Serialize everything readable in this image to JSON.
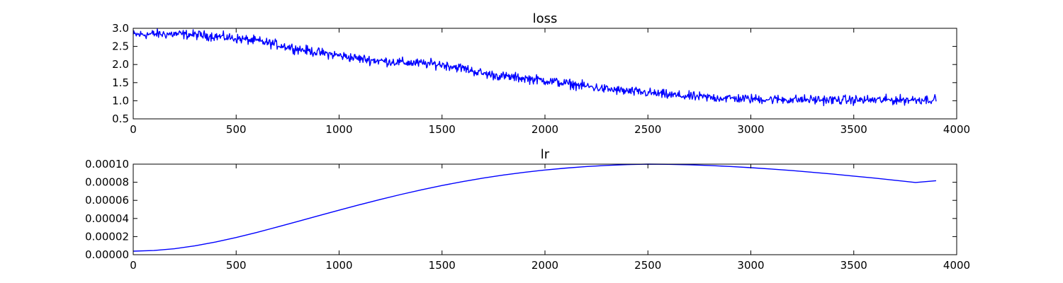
{
  "chart_data": [
    {
      "type": "line",
      "title": "loss",
      "xlabel": "",
      "ylabel": "",
      "xlim": [
        0,
        4000
      ],
      "ylim": [
        0.5,
        3.0
      ],
      "xticks": [
        "0",
        "500",
        "1000",
        "1500",
        "2000",
        "2500",
        "3000",
        "3500",
        "4000"
      ],
      "yticks": [
        "0.5",
        "1.0",
        "1.5",
        "2.0",
        "2.5",
        "3.0"
      ],
      "grid": false,
      "series": [
        {
          "color": "#0000ff",
          "noise_amplitude": 0.08,
          "x": [
            0,
            100,
            200,
            300,
            400,
            500,
            600,
            700,
            800,
            900,
            1000,
            1100,
            1200,
            1300,
            1400,
            1500,
            1600,
            1700,
            1800,
            1900,
            2000,
            2100,
            2200,
            2300,
            2400,
            2500,
            2600,
            2700,
            2800,
            2900,
            3000,
            3100,
            3200,
            3300,
            3400,
            3500,
            3600,
            3700,
            3800,
            3900
          ],
          "y": [
            2.82,
            2.84,
            2.84,
            2.82,
            2.78,
            2.72,
            2.65,
            2.55,
            2.43,
            2.33,
            2.25,
            2.16,
            2.1,
            2.06,
            2.03,
            2.0,
            1.9,
            1.75,
            1.67,
            1.62,
            1.56,
            1.48,
            1.4,
            1.32,
            1.26,
            1.22,
            1.16,
            1.12,
            1.09,
            1.07,
            1.05,
            1.04,
            1.03,
            1.03,
            1.02,
            1.02,
            1.02,
            1.02,
            1.03,
            1.04
          ]
        }
      ]
    },
    {
      "type": "line",
      "title": "lr",
      "xlabel": "",
      "ylabel": "",
      "xlim": [
        0,
        4000
      ],
      "ylim": [
        0.0,
        0.0001
      ],
      "xticks": [
        "0",
        "500",
        "1000",
        "1500",
        "2000",
        "2500",
        "3000",
        "3500",
        "4000"
      ],
      "yticks": [
        "0.00000",
        "0.00002",
        "0.00004",
        "0.00006",
        "0.00008",
        "0.00010"
      ],
      "grid": false,
      "series": [
        {
          "color": "#0000ff",
          "x": [
            0,
            100,
            200,
            300,
            400,
            500,
            600,
            700,
            800,
            900,
            1000,
            1100,
            1200,
            1300,
            1400,
            1500,
            1600,
            1700,
            1800,
            1900,
            2000,
            2100,
            2200,
            2300,
            2400,
            2500,
            2600,
            2700,
            2800,
            2900,
            3000,
            3100,
            3200,
            3300,
            3400,
            3500,
            3600,
            3700,
            3800,
            3900
          ],
          "y": [
            3.9e-06,
            4.6e-06,
            6.6e-06,
            9.8e-06,
            1.4e-05,
            1.9e-05,
            2.46e-05,
            3.06e-05,
            3.68e-05,
            4.3e-05,
            4.92e-05,
            5.52e-05,
            6.1e-05,
            6.65e-05,
            7.16e-05,
            7.64e-05,
            8.07e-05,
            8.46e-05,
            8.8e-05,
            9.1e-05,
            9.35e-05,
            9.56e-05,
            9.73e-05,
            9.86e-05,
            9.95e-05,
            0.0001,
            9.98e-05,
            9.93e-05,
            9.85e-05,
            9.74e-05,
            9.61e-05,
            9.46e-05,
            9.29e-05,
            9.1e-05,
            8.9e-05,
            8.68e-05,
            8.46e-05,
            8.22e-05,
            7.97e-05,
            8.17e-05
          ]
        }
      ]
    }
  ]
}
